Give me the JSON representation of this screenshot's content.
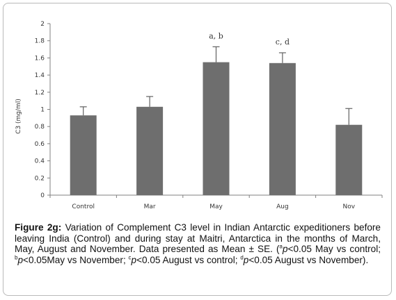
{
  "chart_data": {
    "type": "bar",
    "categories": [
      "Control",
      "Mar",
      "May",
      "Aug",
      "Nov"
    ],
    "values": [
      0.93,
      1.03,
      1.55,
      1.54,
      0.82
    ],
    "errors": [
      0.1,
      0.12,
      0.18,
      0.12,
      0.19
    ],
    "annotations": [
      "",
      "",
      "a, b",
      "c, d",
      ""
    ],
    "xlabel": "",
    "ylabel": "C3 (mg/ml)",
    "ylim": [
      0,
      2
    ],
    "yticks": [
      "0",
      "0.2",
      "0.4",
      "0.6",
      "0.8",
      "1",
      "1.2",
      "1.4",
      "1.6",
      "1.8",
      "2"
    ],
    "bar_color": "#6e6e6e",
    "grid": false,
    "legend": "none"
  },
  "caption": {
    "lead": "Figure 2g:",
    "line1": " Variation of Complement C3 level in Indian Antarctic expeditioners before leaving India (Control) and during stay at Maitri, Antarctica in the months of March, May, August and November. Data presented as Mean ± SE. (",
    "sup_a": "a",
    "p1": "p",
    "t1": "<0.05 May vs control; ",
    "sup_b": "b",
    "p2": "p",
    "t2": "<0.05May vs November; ",
    "sup_c": "c",
    "p3": "p",
    "t3": "<0.05 August vs control; ",
    "sup_d": "d",
    "p4": "p",
    "t4": "<0.05 August vs November)."
  }
}
